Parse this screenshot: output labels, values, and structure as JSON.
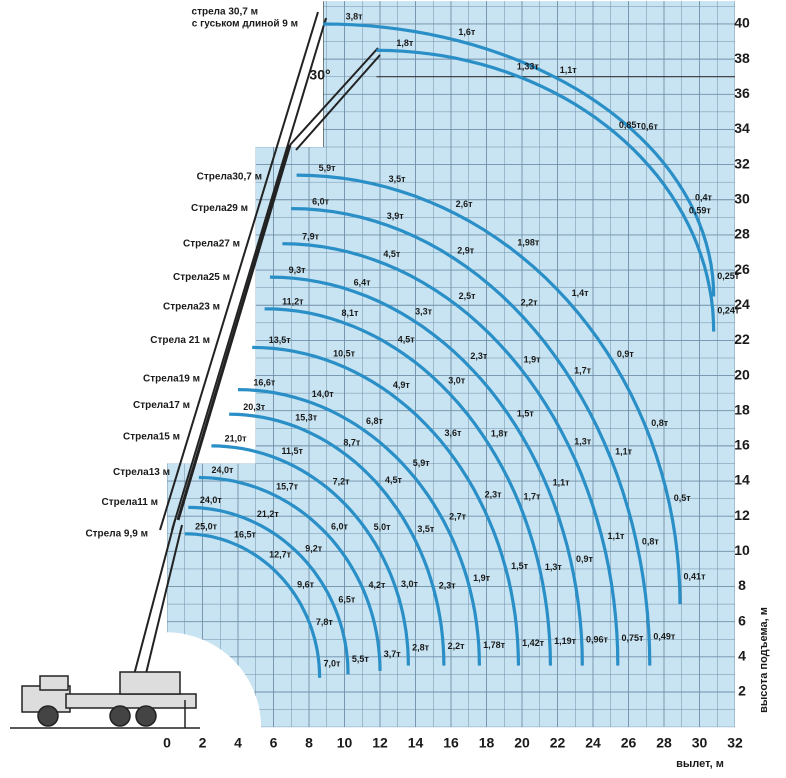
{
  "chart_data": {
    "type": "load-chart",
    "x_axis_label": "вылет, м",
    "y_axis_label": "высота подъема, м",
    "xticks": [
      0,
      2,
      4,
      6,
      8,
      10,
      12,
      14,
      16,
      18,
      20,
      22,
      24,
      26,
      28,
      30,
      32
    ],
    "yticks": [
      2,
      4,
      6,
      8,
      10,
      12,
      14,
      16,
      18,
      20,
      22,
      24,
      26,
      28,
      30,
      32,
      34,
      36,
      38,
      40
    ],
    "jib_angle_label": "30°",
    "jib_title": [
      "стрела 30,7 м",
      "с гуськом длиной 9 м"
    ],
    "curves": [
      {
        "name": "Стрела 9,9 м",
        "loads": [
          "25,0т",
          "16,5т",
          "12,7т",
          "9,6т",
          "7,8т",
          "7,0т"
        ]
      },
      {
        "name": "Стрела11 м",
        "loads": [
          "24,0т",
          "21,2т",
          "9,2т",
          "6,5т",
          "5,5т"
        ]
      },
      {
        "name": "Стрела13 м",
        "loads": [
          "24,0т",
          "15,7т",
          "6,0т",
          "4,2т",
          "3,7т"
        ]
      },
      {
        "name": "Стрела15 м",
        "loads": [
          "21,0т",
          "11,5т",
          "7,2т",
          "5,0т",
          "3,0т",
          "2,8т"
        ]
      },
      {
        "name": "Стрела17 м",
        "loads": [
          "20,3т",
          "15,3т",
          "8,7т",
          "4,5т",
          "3,5т",
          "2,3т",
          "2,2т"
        ]
      },
      {
        "name": "Стрела19 м",
        "loads": [
          "16,6т",
          "14,0т",
          "6,8т",
          "5,9т",
          "2,7т",
          "1,9т",
          "1,78т"
        ]
      },
      {
        "name": "Стрела 21 м",
        "loads": [
          "13,5т",
          "10,5т",
          "4,9т",
          "3,6т",
          "2,3т",
          "1,5т",
          "1,42т"
        ]
      },
      {
        "name": "Стрела23 м",
        "loads": [
          "11,2т",
          "8,1т",
          "4,5т",
          "3,0т",
          "1,8т",
          "1,7т",
          "1,3т",
          "1,19т"
        ]
      },
      {
        "name": "Стрела25 м",
        "loads": [
          "9,3т",
          "6,4т",
          "3,3т",
          "2,3т",
          "1,5т",
          "1,1т",
          "0,9т",
          "0,96т"
        ]
      },
      {
        "name": "Стрела27 м",
        "loads": [
          "7,9т",
          "4,5т",
          "2,5т",
          "1,9т",
          "1,3т",
          "1,1т",
          "0,75т"
        ]
      },
      {
        "name": "Стрела29 м",
        "loads": [
          "6,0т",
          "3,9т",
          "2,9т",
          "2,2т",
          "1,7т",
          "1,1т",
          "0,8т",
          "0,49т"
        ]
      },
      {
        "name": "Стрела30,7 м",
        "loads": [
          "5,9т",
          "3,5т",
          "2,6т",
          "1,98т",
          "1,4т",
          "0,9т",
          "0,8т",
          "0,5т",
          "0,41т"
        ]
      },
      {
        "loads": [
          "3,8т",
          "1,6т",
          "1,1т",
          "0,6т",
          "0,4т",
          "0,25т"
        ]
      },
      {
        "loads": [
          "1,8т",
          "1,33т",
          "0,85т",
          "0,59т",
          "0,24т"
        ]
      }
    ]
  }
}
